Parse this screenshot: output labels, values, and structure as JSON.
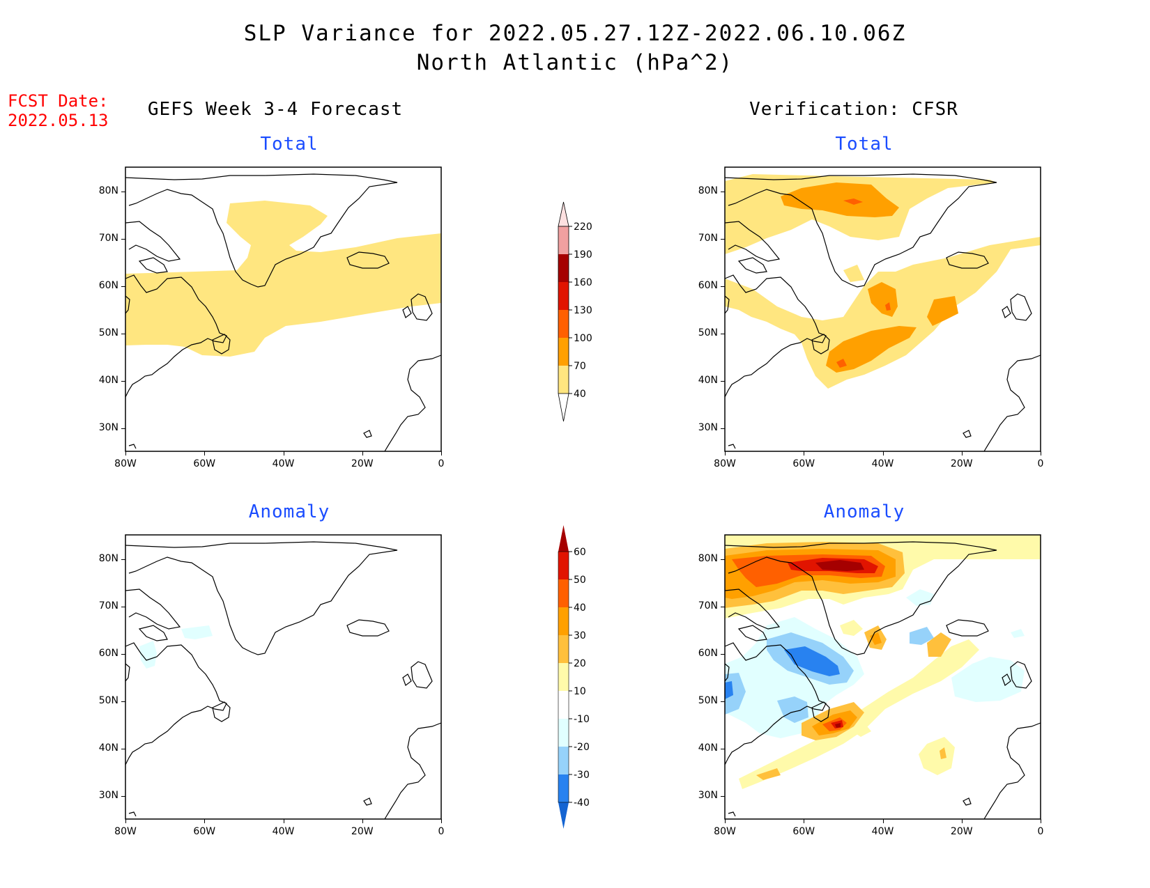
{
  "title_line1": "SLP Variance for 2022.05.27.12Z-2022.06.10.06Z",
  "title_line2": "North Atlantic (hPa^2)",
  "fcst_label": "FCST Date:",
  "fcst_date": "2022.05.13",
  "col_left": "GEFS Week 3-4 Forecast",
  "col_right": "Verification: CFSR",
  "panel_total": "Total",
  "panel_anomaly": "Anomaly",
  "lat_ticks": [
    "80N",
    "70N",
    "60N",
    "50N",
    "40N",
    "30N"
  ],
  "lon_ticks": [
    "80W",
    "60W",
    "40W",
    "20W",
    "0"
  ],
  "colors": {
    "total": [
      "#ffe680",
      "#ffa000",
      "#ff6000",
      "#e11400",
      "#a50000",
      "#f0a0a0",
      "#fde0e0"
    ],
    "anomaly": [
      "#1464d2",
      "#2882f0",
      "#96d2fa",
      "#e1ffff",
      "#ffffff",
      "#fffaaa",
      "#ffc03c",
      "#ffa000",
      "#ff6000",
      "#e11400",
      "#a50000"
    ]
  },
  "colorbar_total": [
    "220",
    "190",
    "160",
    "130",
    "100",
    "70",
    "40"
  ],
  "colorbar_anomaly": [
    "60",
    "50",
    "40",
    "30",
    "20",
    "10",
    "-10",
    "-20",
    "-30",
    "-40"
  ],
  "map_extent": {
    "lon": [
      -80,
      0
    ],
    "lat": [
      25,
      85
    ]
  }
}
